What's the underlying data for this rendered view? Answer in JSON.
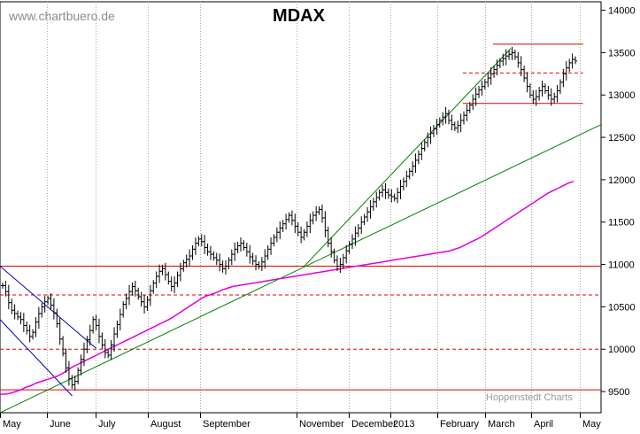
{
  "watermark": "www.chartbuero.de",
  "credit": "Hoppenstedt Charts",
  "chart_data": {
    "type": "bar",
    "subtype": "ohlc",
    "title": "MDAX",
    "xlabel": "",
    "ylabel": "",
    "ylim": [
      9250,
      14100
    ],
    "y_ticks": [
      9500,
      10000,
      10500,
      11000,
      11500,
      12000,
      12500,
      13000,
      13500,
      14000
    ],
    "y_axis_side": "right",
    "grid": "vertical dotted lines at month starts",
    "month_labels": [
      "May",
      "June",
      "July",
      "August",
      "September",
      "November",
      "December",
      "2013",
      "February",
      "March",
      "April",
      "May"
    ],
    "price_close": [
      10750,
      10680,
      10550,
      10460,
      10420,
      10380,
      10350,
      10280,
      10220,
      10150,
      10200,
      10320,
      10420,
      10500,
      10560,
      10600,
      10520,
      10430,
      10300,
      10120,
      9950,
      9780,
      9650,
      9580,
      9620,
      9750,
      9880,
      10000,
      10110,
      10220,
      10350,
      10280,
      10150,
      10050,
      9960,
      9930,
      10050,
      10180,
      10290,
      10410,
      10530,
      10600,
      10680,
      10740,
      10690,
      10620,
      10560,
      10500,
      10580,
      10690,
      10780,
      10860,
      10920,
      10950,
      10880,
      10800,
      10740,
      10780,
      10870,
      10950,
      11020,
      11060,
      11100,
      11180,
      11250,
      11300,
      11270,
      11200,
      11150,
      11120,
      11080,
      11050,
      11000,
      10950,
      10980,
      11050,
      11120,
      11180,
      11220,
      11250,
      11200,
      11150,
      11090,
      11040,
      11000,
      10980,
      11030,
      11100,
      11180,
      11250,
      11320,
      11380,
      11430,
      11480,
      11530,
      11580,
      11520,
      11450,
      11380,
      11320,
      11380,
      11450,
      11520,
      11580,
      11620,
      11650,
      11550,
      11400,
      11250,
      11150,
      11050,
      10980,
      11000,
      11080,
      11160,
      11240,
      11300,
      11370,
      11430,
      11500,
      11560,
      11620,
      11680,
      11740,
      11790,
      11850,
      11880,
      11850,
      11820,
      11800,
      11780,
      11850,
      11920,
      11980,
      12040,
      12100,
      12160,
      12230,
      12300,
      12370,
      12440,
      12500,
      12550,
      12600,
      12650,
      12700,
      12740,
      12780,
      12700,
      12650,
      12610,
      12640,
      12700,
      12760,
      12820,
      12880,
      12950,
      13010,
      13060,
      13100,
      13150,
      13200,
      13250,
      13300,
      13350,
      13400,
      13430,
      13460,
      13480,
      13500,
      13450,
      13380,
      13300,
      13200,
      13100,
      13000,
      12950,
      12980,
      13050,
      13100,
      13050,
      13000,
      12950,
      12980,
      13050,
      13150,
      13250,
      13320,
      13380,
      13420,
      13400
    ],
    "moving_average": {
      "label": "",
      "values": [
        9470,
        9470,
        9480,
        9500,
        9520,
        9550,
        9570,
        9600,
        9620,
        9640,
        9660,
        9680,
        9710,
        9750,
        9790,
        9820,
        9850,
        9880,
        9910,
        9940,
        9970,
        10000,
        10030,
        10060,
        10090,
        10120,
        10150,
        10180,
        10210,
        10240,
        10270,
        10300,
        10330,
        10360,
        10400,
        10440,
        10480,
        10520,
        10560,
        10600,
        10630,
        10650,
        10670,
        10700,
        10720,
        10740,
        10750,
        10760,
        10770,
        10780,
        10790,
        10800,
        10810,
        10820,
        10830,
        10840,
        10850,
        10860,
        10870,
        10880,
        10890,
        10900,
        10910,
        10920,
        10930,
        10940,
        10950,
        10960,
        10970,
        10980,
        10990,
        11000,
        11010,
        11020,
        11030,
        11040,
        11050,
        11060,
        11070,
        11080,
        11090,
        11100,
        11110,
        11120,
        11130,
        11140,
        11150,
        11160,
        11180,
        11200,
        11230,
        11260,
        11290,
        11320,
        11360,
        11400,
        11440,
        11480,
        11520,
        11560,
        11600,
        11640,
        11680,
        11720,
        11760,
        11800,
        11840,
        11870,
        11900,
        11930,
        11960,
        11980
      ]
    },
    "trendlines": [
      {
        "color": "#008000",
        "from": [
          0,
          9250
        ],
        "to": [
          1,
          12650
        ]
      },
      {
        "color": "#008000",
        "from": [
          0.505,
          10970
        ],
        "to": [
          0.85,
          13550
        ]
      },
      {
        "color": "#0000b8",
        "from": [
          0,
          10980
        ],
        "to": [
          0.16,
          10010
        ]
      },
      {
        "color": "#0000b8",
        "from": [
          0,
          10350
        ],
        "to": [
          0.12,
          9450
        ]
      }
    ],
    "horizontal_lines": [
      {
        "value": 13600,
        "style": "solid",
        "color": "#e00000",
        "from": 0.82,
        "to": 0.97
      },
      {
        "value": 13260,
        "style": "dashed",
        "color": "#e00000",
        "from": 0.77,
        "to": 0.97
      },
      {
        "value": 12900,
        "style": "solid",
        "color": "#e00000",
        "from": 0.77,
        "to": 0.97
      },
      {
        "value": 10980,
        "style": "solid",
        "color": "#e00000",
        "from": 0,
        "to": 1
      },
      {
        "value": 10640,
        "style": "dashed",
        "color": "#e00000",
        "from": 0,
        "to": 1
      },
      {
        "value": 10000,
        "style": "dashed",
        "color": "#e00000",
        "from": 0,
        "to": 1
      },
      {
        "value": 9520,
        "style": "solid",
        "color": "#e00000",
        "from": 0,
        "to": 1
      }
    ],
    "colors": {
      "price": "#000000",
      "moving_average": "#e000e0",
      "trend": "#008000",
      "channel": "#0000b8",
      "levels": "#e00000"
    }
  }
}
